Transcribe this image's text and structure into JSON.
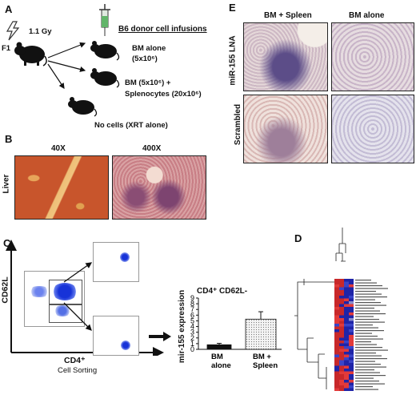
{
  "panels": {
    "a": "A",
    "b": "B",
    "c": "C",
    "d": "D",
    "e": "E"
  },
  "panel_a": {
    "dose": "1.1 Gy",
    "recipient": "F1",
    "infusions_title": "B6 donor cell infusions",
    "bm_alone_line1": "BM  alone",
    "bm_alone_line2": "(5x10⁶)",
    "bm_spleen_line1": "BM  (5x10⁶) +",
    "bm_spleen_line2": "Splenocytes (20x10⁶)",
    "no_cells": "No cells (XRT alone)"
  },
  "panel_b": {
    "mag_low": "40X",
    "mag_high": "400X",
    "row_label": "Liver"
  },
  "panel_c": {
    "y_axis": "CD62L",
    "x_axis": "CD4⁺",
    "x_sub": "Cell Sorting"
  },
  "panel_e": {
    "col1": "BM + Spleen",
    "col2": "BM alone",
    "row1": "miR-155 LNA",
    "row2": "Scrambled"
  },
  "chart_data": {
    "type": "bar",
    "title": "CD4⁺ CD62L-",
    "ylabel": "mir-155 expression",
    "categories": [
      "BM alone",
      "BM + Spleen"
    ],
    "category_lines": [
      [
        "BM",
        "alone"
      ],
      [
        "BM +",
        "Spleen"
      ]
    ],
    "values": [
      0.8,
      5.3
    ],
    "errors": [
      0.25,
      1.3
    ],
    "ylim": [
      0,
      9
    ],
    "yticks": [
      0,
      1,
      2,
      3,
      4,
      5,
      6,
      7,
      8,
      9
    ],
    "colors": [
      "#111111",
      "#e9e9e9"
    ]
  }
}
